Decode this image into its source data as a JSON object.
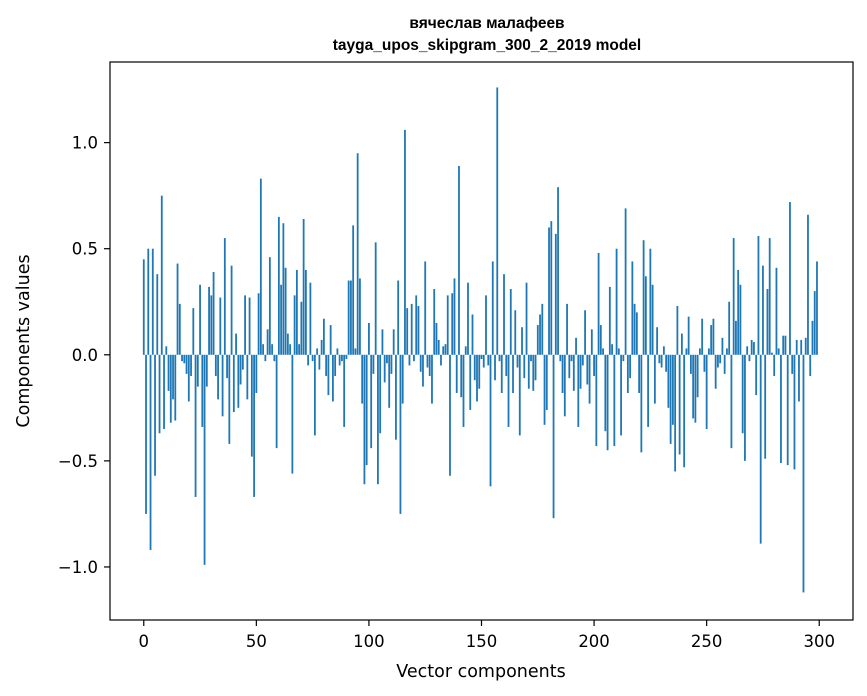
{
  "chart_data": {
    "type": "bar",
    "title_line1": "вячеслав малафеев",
    "title_line2": "tayga_upos_skipgram_300_2_2019 model",
    "xlabel": "Vector components",
    "ylabel": "Components values",
    "xlim": [
      -15,
      315
    ],
    "ylim": [
      -1.25,
      1.38
    ],
    "xticks": [
      0,
      50,
      100,
      150,
      200,
      250,
      300
    ],
    "xtick_labels": [
      "0",
      "50",
      "100",
      "150",
      "200",
      "250",
      "300"
    ],
    "yticks": [
      -1.0,
      -0.5,
      0.0,
      0.5,
      1.0
    ],
    "ytick_labels": [
      "−1.0",
      "−0.5",
      "0.0",
      "0.5",
      "1.0"
    ],
    "bar_color": "#1f77b4",
    "values": [
      0.45,
      -0.75,
      0.5,
      -0.92,
      0.5,
      -0.57,
      0.38,
      -0.37,
      0.75,
      -0.35,
      0.04,
      -0.17,
      -0.32,
      -0.21,
      -0.31,
      0.43,
      0.24,
      -0.03,
      -0.04,
      -0.09,
      -0.22,
      -0.1,
      0.22,
      -0.67,
      -0.15,
      0.33,
      -0.34,
      -0.99,
      -0.15,
      0.32,
      0.28,
      0.39,
      -0.1,
      -0.21,
      0.27,
      -0.29,
      0.55,
      -0.11,
      -0.42,
      0.42,
      -0.27,
      0.1,
      -0.25,
      -0.14,
      -0.07,
      0.28,
      -0.21,
      0.27,
      -0.48,
      -0.67,
      -0.18,
      0.29,
      0.83,
      0.05,
      -0.03,
      0.12,
      0.46,
      0.05,
      -0.03,
      -0.44,
      0.65,
      0.33,
      0.62,
      0.41,
      0.1,
      0.05,
      -0.56,
      0.28,
      0.4,
      0.05,
      0.25,
      0.64,
      0.4,
      -0.05,
      0.34,
      -0.03,
      -0.38,
      0.03,
      -0.07,
      0.07,
      0.17,
      -0.1,
      -0.19,
      0.14,
      -0.22,
      -0.1,
      0.03,
      -0.05,
      -0.03,
      -0.34,
      -0.02,
      0.35,
      0.35,
      0.61,
      0.03,
      0.95,
      0.36,
      -0.23,
      -0.61,
      -0.52,
      0.15,
      -0.44,
      -0.09,
      0.53,
      -0.61,
      -0.37,
      0.12,
      -0.13,
      -0.04,
      -0.25,
      -0.09,
      0.12,
      -0.4,
      0.35,
      -0.75,
      -0.23,
      1.06,
      0.22,
      -0.05,
      0.24,
      -0.03,
      0.28,
      0.23,
      -0.08,
      -0.15,
      0.44,
      -0.06,
      -0.1,
      -0.23,
      0.31,
      0.15,
      0.07,
      -0.05,
      0.04,
      0.05,
      0.28,
      -0.57,
      0.29,
      0.36,
      -0.18,
      0.89,
      -0.2,
      -0.34,
      0.04,
      0.34,
      -0.26,
      0.19,
      -0.12,
      -0.22,
      -0.16,
      -0.02,
      -0.06,
      0.28,
      -0.05,
      -0.62,
      0.44,
      -0.12,
      1.26,
      -0.03,
      -0.18,
      0.38,
      -0.1,
      -0.34,
      0.31,
      -0.18,
      0.21,
      -0.06,
      -0.38,
      0.13,
      -0.11,
      0.34,
      -0.16,
      -0.03,
      -0.17,
      -0.12,
      0.14,
      0.19,
      0.24,
      -0.33,
      -0.26,
      0.6,
      0.63,
      -0.77,
      0.57,
      0.79,
      -0.03,
      -0.18,
      -0.29,
      0.24,
      -0.11,
      -0.03,
      -0.17,
      0.08,
      -0.34,
      -0.16,
      -0.05,
      0.21,
      -0.14,
      -0.23,
      0.12,
      -0.1,
      -0.43,
      0.48,
      0.14,
      0.03,
      -0.36,
      -0.45,
      0.32,
      0.05,
      -0.43,
      0.5,
      0.03,
      -0.38,
      -0.03,
      0.69,
      -0.18,
      -0.11,
      0.44,
      0.24,
      0.2,
      -0.18,
      -0.46,
      0.54,
      0.37,
      -0.34,
      0.5,
      0.33,
      -0.23,
      0.13,
      -0.04,
      -0.06,
      0.04,
      -0.08,
      -0.25,
      -0.42,
      -0.33,
      -0.55,
      0.23,
      -0.47,
      0.1,
      -0.53,
      0.03,
      0.18,
      -0.09,
      -0.3,
      -0.32,
      -0.2,
      0.03,
      0.17,
      -0.08,
      -0.35,
      0.03,
      0.14,
      0.17,
      -0.16,
      -0.06,
      -0.04,
      0.08,
      -0.09,
      0.03,
      0.25,
      -0.44,
      0.55,
      0.16,
      0.4,
      0.33,
      -0.37,
      -0.5,
      0.04,
      -0.03,
      0.07,
      0.06,
      -0.19,
      0.56,
      -0.89,
      0.42,
      -0.49,
      0.31,
      0.55,
      0.01,
      -0.1,
      0.41,
      0.03,
      -0.51,
      0.09,
      0.09,
      -0.52,
      0.72,
      -0.09,
      -0.54,
      0.07,
      -0.22,
      0.07,
      -1.12,
      0.08,
      0.66,
      -0.1,
      0.16,
      0.3,
      0.44
    ]
  }
}
